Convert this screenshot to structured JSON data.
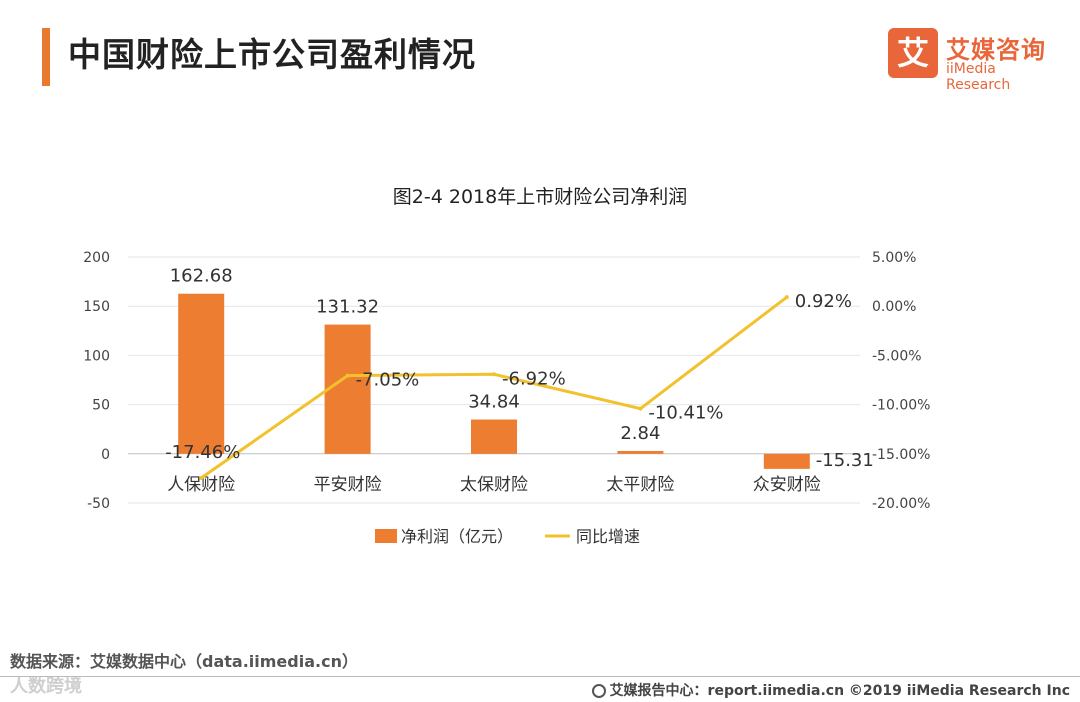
{
  "header": {
    "title": "中国财险上市公司盈利情况"
  },
  "logo": {
    "mark": "艾",
    "name_cn": "艾媒咨询",
    "name_en": "iiMedia Research"
  },
  "chart_data": {
    "type": "bar+line",
    "title": "图2-4 2018年上市财险公司净利润",
    "categories": [
      "人保财险",
      "平安财险",
      "太保财险",
      "太平财险",
      "众安财险"
    ],
    "series": [
      {
        "name": "净利润（亿元）",
        "type": "bar",
        "axis": "left",
        "color": "#ed7d31",
        "values": [
          162.68,
          131.32,
          34.84,
          2.84,
          -15.31
        ],
        "labels": [
          "162.68",
          "131.32",
          "34.84",
          "2.84",
          "-15.31"
        ]
      },
      {
        "name": "同比增速",
        "type": "line",
        "axis": "right",
        "color": "#f2c12e",
        "values": [
          -17.46,
          -7.05,
          -6.92,
          -10.41,
          0.92
        ],
        "labels": [
          "-17.46%",
          "-7.05%",
          "-6.92%",
          "-10.41%",
          "0.92%"
        ]
      }
    ],
    "y_left": {
      "min": -50,
      "max": 200,
      "ticks": [
        "200",
        "150",
        "100",
        "50",
        "0",
        "-50"
      ]
    },
    "y_right": {
      "min": -20,
      "max": 5,
      "ticks": [
        "5.00%",
        "0.00%",
        "-5.00%",
        "-10.00%",
        "-15.00%",
        "-20.00%"
      ]
    },
    "grid": true,
    "legend": "bottom"
  },
  "source": "数据来源：艾媒数据中心（data.iimedia.cn）",
  "watermark": "人数跨境",
  "footer": "艾媒报告中心：report.iimedia.cn   ©2019  iiMedia Research  Inc",
  "colors": {
    "accent": "#e87a2f",
    "bar": "#ed7d31",
    "line": "#f2c12e"
  }
}
